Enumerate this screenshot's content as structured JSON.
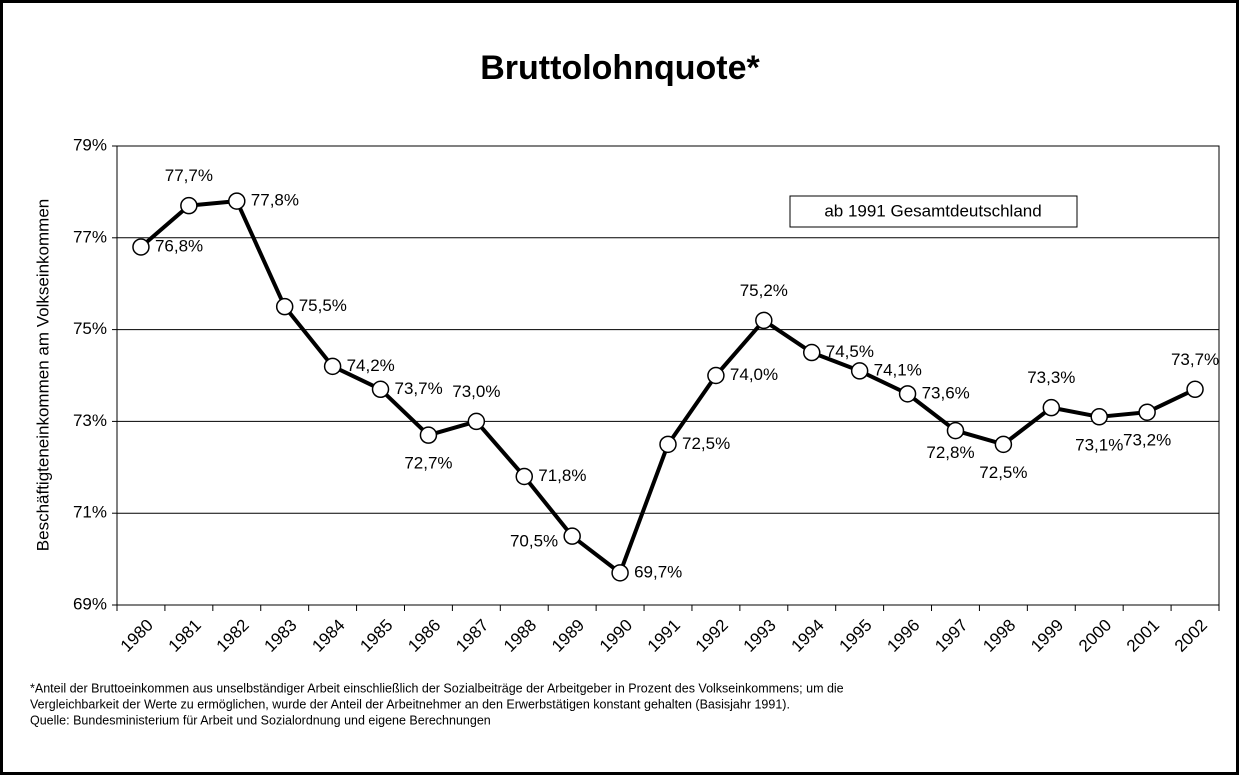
{
  "chart_data": {
    "type": "line",
    "title": "Bruttolohnquote*",
    "y_label": "Beschäftigteneinkommen am Volkseinkommen",
    "annotation": "ab 1991 Gesamtdeutschland",
    "categories": [
      "1980",
      "1981",
      "1982",
      "1983",
      "1984",
      "1985",
      "1986",
      "1987",
      "1988",
      "1989",
      "1990",
      "1991",
      "1992",
      "1993",
      "1994",
      "1995",
      "1996",
      "1997",
      "1998",
      "1999",
      "2000",
      "2001",
      "2002"
    ],
    "values": [
      76.8,
      77.7,
      77.8,
      75.5,
      74.2,
      73.7,
      72.7,
      73.0,
      71.8,
      70.5,
      69.7,
      72.5,
      74.0,
      75.2,
      74.5,
      74.1,
      73.6,
      72.8,
      72.5,
      73.3,
      73.1,
      73.2,
      73.7
    ],
    "value_labels": [
      "76,8%",
      "77,7%",
      "77,8%",
      "75,5%",
      "74,2%",
      "73,7%",
      "72,7%",
      "73,0%",
      "71,8%",
      "70,5%",
      "69,7%",
      "72,5%",
      "74,0%",
      "75,2%",
      "74,5%",
      "74,1%",
      "73,6%",
      "72,8%",
      "72,5%",
      "73,3%",
      "73,1%",
      "73,2%",
      "73,7%"
    ],
    "color": "#000000",
    "ylim": [
      69,
      79
    ],
    "yticks": [
      {
        "value": 69,
        "label": "69%"
      },
      {
        "value": 71,
        "label": "71%"
      },
      {
        "value": 73,
        "label": "73%"
      },
      {
        "value": 75,
        "label": "75%"
      },
      {
        "value": 77,
        "label": "77%"
      },
      {
        "value": 79,
        "label": "79%"
      }
    ],
    "grid": true,
    "notes": [
      "*Anteil der Bruttoeinkommen aus unselbständiger Arbeit einschließlich der Sozialbeiträge der Arbeitgeber in Prozent des Volkseinkommens; um die",
      "Vergleichbarkeit der Werte zu ermöglichen, wurde der Anteil der Arbeitnehmer an den Erwerbstätigen konstant gehalten (Basisjahr 1991).",
      "Quelle: Bundesministerium für Arbeit und Sozialordnung und eigene Berechnungen"
    ]
  }
}
